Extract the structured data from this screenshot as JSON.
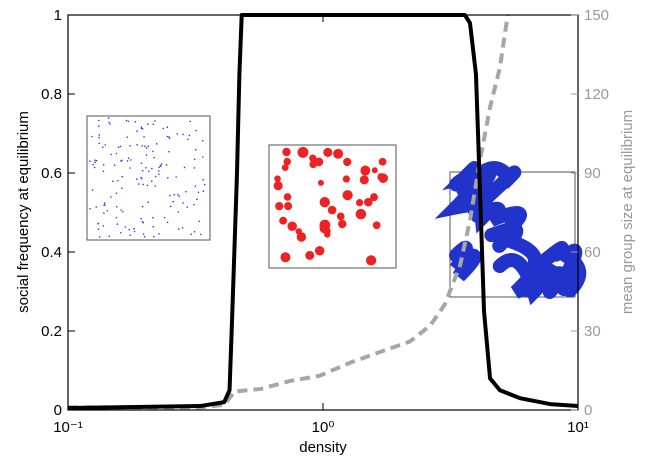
{
  "chart_data": {
    "type": "line",
    "x_label": "density",
    "y_label": "social frequency at equilibrium",
    "y2_label": "mean group size at equilibrium",
    "xscale": "log",
    "xlim": [
      0.1,
      10
    ],
    "xticks": [
      {
        "value": 0.1,
        "label": "10⁻¹"
      },
      {
        "value": 1,
        "label": "10⁰"
      },
      {
        "value": 10,
        "label": "10¹"
      }
    ],
    "ylim": [
      0,
      1
    ],
    "yticks": [
      0,
      0.2,
      0.4,
      0.6,
      0.8,
      1
    ],
    "y2lim": [
      0,
      150
    ],
    "y2ticks": [
      0,
      30,
      60,
      90,
      120,
      150
    ],
    "series": [
      {
        "name": "social frequency",
        "color": "#000000",
        "dash": false,
        "x": [
          0.1,
          0.33,
          0.41,
          0.43,
          0.44,
          0.46,
          0.47,
          0.48,
          3.6,
          3.77,
          3.98,
          4.13,
          4.28,
          4.52,
          4.94,
          5.92,
          7.77,
          10
        ],
        "values": [
          0.005,
          0.01,
          0.02,
          0.05,
          0.23,
          0.6,
          0.85,
          1,
          1,
          0.98,
          0.85,
          0.55,
          0.25,
          0.08,
          0.05,
          0.03,
          0.015,
          0.01
        ]
      },
      {
        "name": "mean group size",
        "color": "#a6a6a6",
        "dash": true,
        "axis": "y2",
        "x": [
          0.1,
          0.33,
          0.41,
          0.45,
          0.57,
          0.68,
          0.74,
          0.97,
          1.28,
          1.67,
          2.19,
          2.63,
          3.0,
          3.45,
          3.77,
          4.13,
          4.52,
          4.94,
          5.3
        ],
        "values": [
          1,
          1,
          2,
          7,
          8,
          10,
          11,
          13,
          18,
          22,
          26,
          32,
          40,
          55,
          72,
          95,
          115,
          130,
          150
        ]
      }
    ]
  }
}
